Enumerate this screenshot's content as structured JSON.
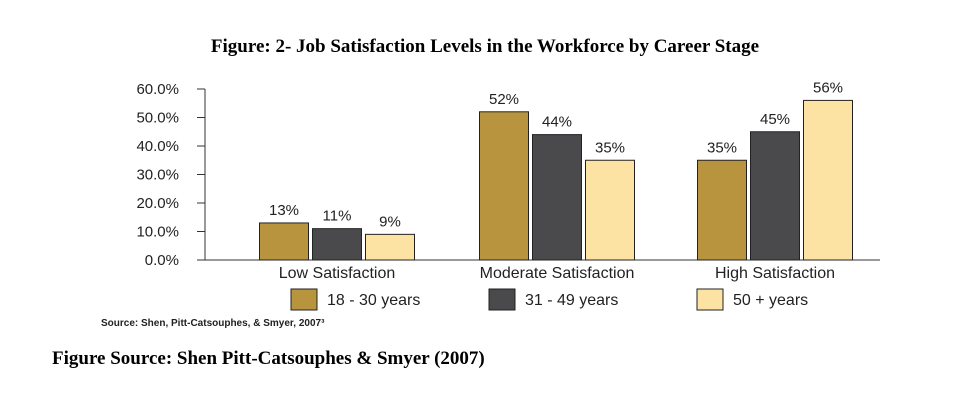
{
  "figure_title": "Figure: 2- Job Satisfaction Levels in the Workforce by Career Stage",
  "chart_data": {
    "type": "bar",
    "categories": [
      "Low Satisfaction",
      "Moderate Satisfaction",
      "High Satisfaction"
    ],
    "series": [
      {
        "name": "18 - 30 years",
        "values": [
          13,
          52,
          35
        ],
        "labels": [
          "13%",
          "52%",
          "35%"
        ],
        "color": "#b8943e"
      },
      {
        "name": "31 - 49 years",
        "values": [
          11,
          44,
          45
        ],
        "labels": [
          "11%",
          "44%",
          "45%"
        ],
        "color": "#4a4a4c"
      },
      {
        "name": "50 + years",
        "values": [
          9,
          35,
          56
        ],
        "labels": [
          "9%",
          "35%",
          "56%"
        ],
        "color": "#fde3a3"
      }
    ],
    "yticks": [
      "0.0%",
      "10.0%",
      "20.0%",
      "30.0%",
      "40.0%",
      "50.0%",
      "60.0%"
    ],
    "ylim": [
      0,
      60
    ],
    "grid": false,
    "legend_position": "bottom",
    "source": "Source:   Shen, Pitt-Catsouphes, & Smyer, 2007³"
  },
  "figure_source": "Figure Source:  Shen  Pitt-Catsouphes & Smyer (2007)"
}
